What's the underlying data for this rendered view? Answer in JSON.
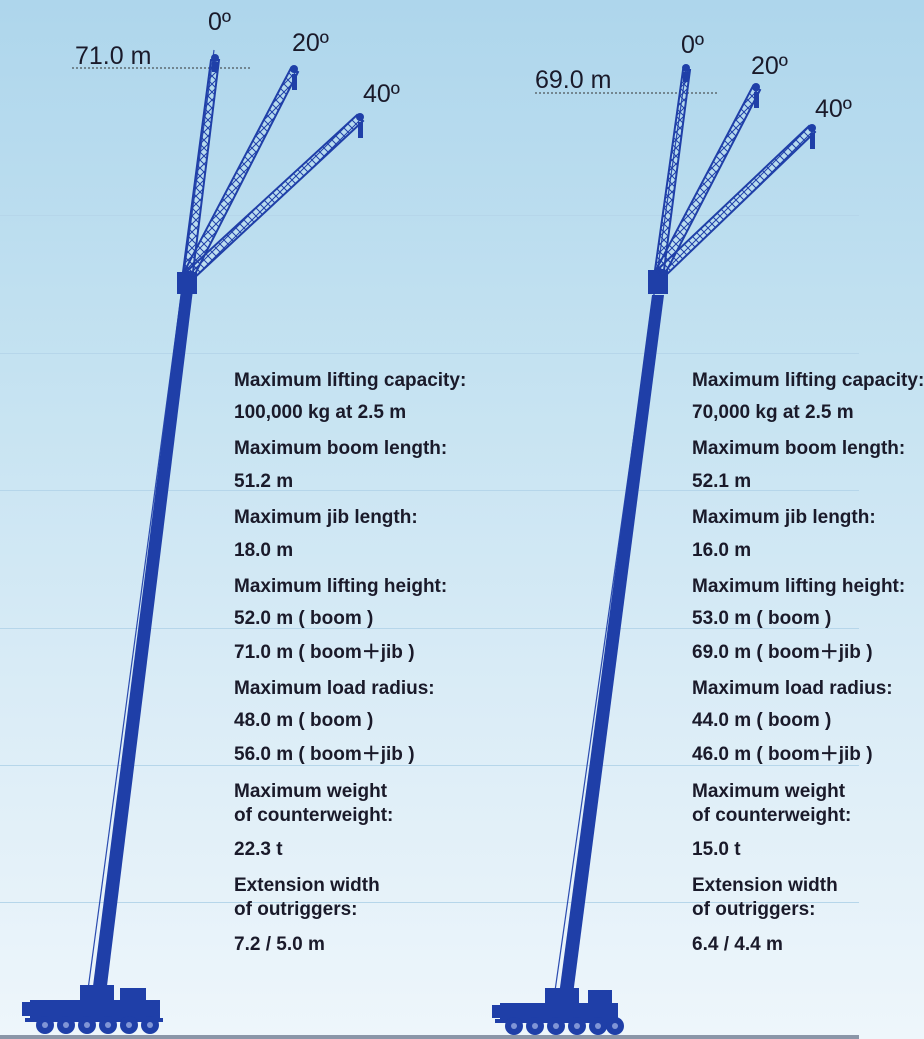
{
  "cranes": [
    {
      "height_label": "71.0 m",
      "angle_labels": [
        "0º",
        "20º",
        "40º"
      ],
      "specs": [
        "Maximum lifting capacity:",
        "100,000 kg at 2.5 m",
        "Maximum boom length:",
        "51.2 m",
        "Maximum jib length:",
        "18.0 m",
        "Maximum lifting height:",
        "52.0 m ( boom )",
        "71.0 m ( boom＋jib )",
        "Maximum load radius:",
        "48.0 m ( boom )",
        "56.0 m ( boom＋jib )",
        "Maximum weight",
        "of counterweight:",
        "22.3 t",
        "Extension width",
        "of outriggers:",
        "7.2 / 5.0 m"
      ]
    },
    {
      "height_label": "69.0 m",
      "angle_labels": [
        "0º",
        "20º",
        "40º"
      ],
      "specs": [
        "Maximum lifting capacity:",
        "70,000 kg at 2.5 m",
        "Maximum boom length:",
        "52.1 m",
        "Maximum jib length:",
        "16.0 m",
        "Maximum lifting height:",
        "53.0 m ( boom )",
        "69.0 m ( boom＋jib )",
        "Maximum load radius:",
        "44.0 m ( boom )",
        "46.0 m ( boom＋jib )",
        "Maximum weight",
        "of counterweight:",
        "15.0 t",
        "Extension width",
        "of outriggers:",
        "6.4 / 4.4 m"
      ]
    }
  ],
  "colors": {
    "crane_blue": "#1f3fa8",
    "text": "#1a1a2a",
    "sky_top": "#aed6ec",
    "sky_bottom": "#eef6fb"
  }
}
